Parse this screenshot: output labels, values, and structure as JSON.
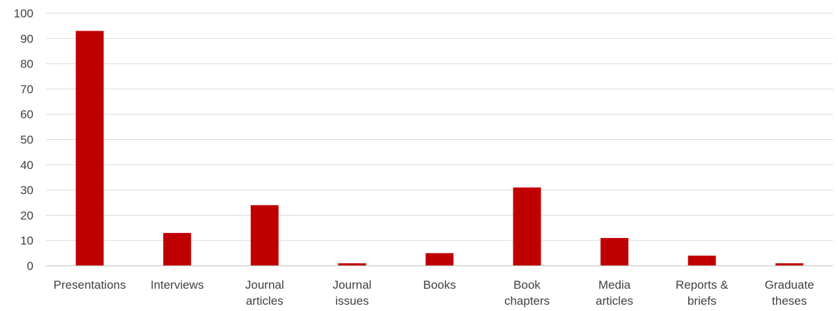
{
  "chart_data": {
    "type": "bar",
    "categories": [
      [
        "Presentations"
      ],
      [
        "Interviews"
      ],
      [
        "Journal",
        "articles"
      ],
      [
        "Journal",
        "issues"
      ],
      [
        "Books"
      ],
      [
        "Book",
        "chapters"
      ],
      [
        "Media",
        "articles"
      ],
      [
        "Reports &",
        "briefs"
      ],
      [
        "Graduate",
        "theses"
      ]
    ],
    "values": [
      93,
      13,
      24,
      1,
      5,
      31,
      11,
      4,
      1
    ],
    "ylim": [
      0,
      100
    ],
    "yticks": [
      0,
      10,
      20,
      30,
      40,
      50,
      60,
      70,
      80,
      90,
      100
    ],
    "grid": true,
    "legend": "none",
    "bar_color": "#C00000",
    "grid_color": "#D9D9D9",
    "axis_color": "#BFBFBF",
    "text_color": "#404040"
  }
}
